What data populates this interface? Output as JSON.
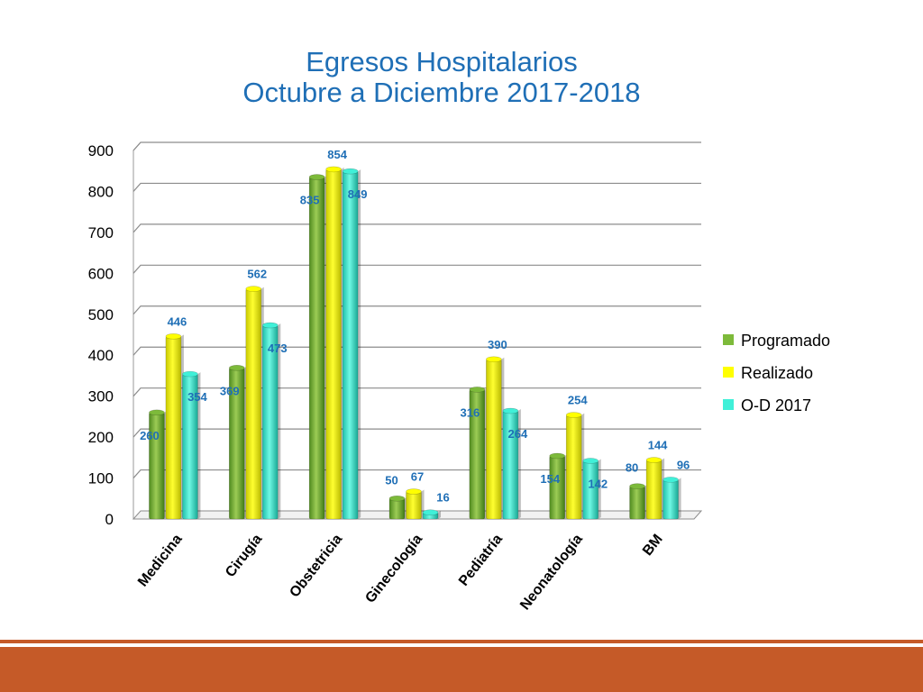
{
  "chart_data": {
    "type": "bar",
    "title": "Egresos Hospitalarios",
    "subtitle": "Octubre a Diciembre 2017-2018",
    "categories": [
      "Medicina",
      "Cirugía",
      "Obstetricia",
      "Ginecología",
      "Pediatría",
      "Neonatología",
      "BM"
    ],
    "series": [
      {
        "name": "Programado",
        "values": [
          260,
          369,
          835,
          50,
          316,
          154,
          80
        ],
        "color": "#7dba3a"
      },
      {
        "name": "Realizado",
        "values": [
          446,
          562,
          854,
          67,
          390,
          254,
          144
        ],
        "color": "#ffff00"
      },
      {
        "name": "O-D 2017",
        "values": [
          354,
          473,
          849,
          16,
          264,
          142,
          96
        ],
        "color": "#40f0d8"
      }
    ],
    "ylim": [
      0,
      900
    ],
    "yticks": [
      "0",
      "100",
      "200",
      "300",
      "400",
      "500",
      "600",
      "700",
      "800",
      "900"
    ],
    "grid": true,
    "legend_position": "right",
    "data_label_color": "#1f6fb6"
  },
  "colors": {
    "title": "#1f6fb6",
    "footer": "#c55a28"
  }
}
